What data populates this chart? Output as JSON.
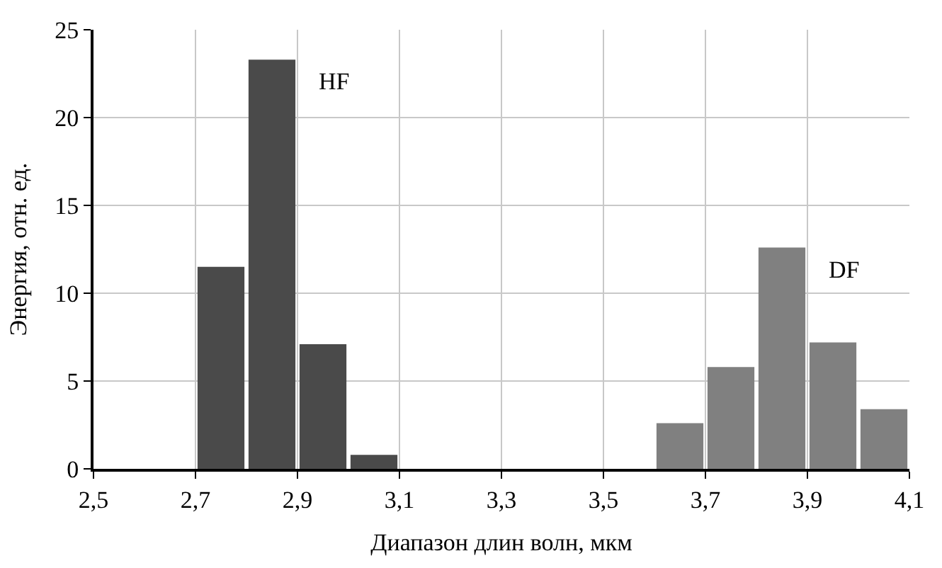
{
  "chart_data": {
    "type": "bar",
    "xlabel": "Диапазон длин волн, мкм",
    "ylabel": "Энергия, отн. ед.",
    "series": [
      {
        "name": "HF",
        "color": "#4a4a4a",
        "x": [
          2.75,
          2.85,
          2.95,
          3.05
        ],
        "values": [
          11.5,
          23.3,
          7.1,
          0.8
        ]
      },
      {
        "name": "DF",
        "color": "#808080",
        "x": [
          3.65,
          3.75,
          3.85,
          3.95,
          4.05
        ],
        "values": [
          2.6,
          5.8,
          12.6,
          7.2,
          3.4
        ]
      }
    ],
    "xlim": [
      2.5,
      4.1
    ],
    "xticks": [
      {
        "value": 2.5,
        "label": "2,5"
      },
      {
        "value": 2.7,
        "label": "2,7"
      },
      {
        "value": 2.9,
        "label": "2,9"
      },
      {
        "value": 3.1,
        "label": "3,1"
      },
      {
        "value": 3.3,
        "label": "3,3"
      },
      {
        "value": 3.5,
        "label": "3,5"
      },
      {
        "value": 3.7,
        "label": "3,7"
      },
      {
        "value": 3.9,
        "label": "3,9"
      },
      {
        "value": 4.1,
        "label": "4,1"
      }
    ],
    "ylim": [
      0,
      25
    ],
    "yticks": [
      0,
      5,
      10,
      15,
      20,
      25
    ],
    "grid": true,
    "legend": false
  }
}
